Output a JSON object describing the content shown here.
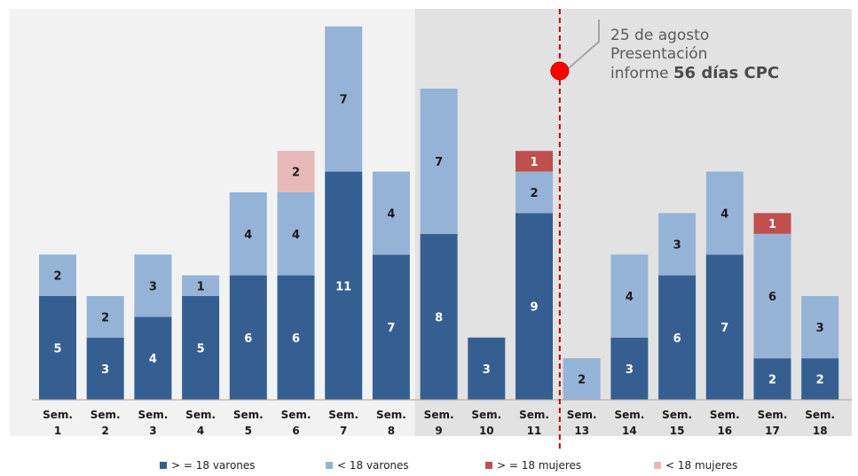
{
  "chart_data": {
    "type": "bar",
    "stacked": true,
    "categories": [
      "Sem. 1",
      "Sem. 2",
      "Sem. 3",
      "Sem. 4",
      "Sem. 5",
      "Sem. 6",
      "Sem. 7",
      "Sem. 8",
      "Sem. 9",
      "Sem. 10",
      "Sem. 11",
      "Sem. 13",
      "Sem. 14",
      "Sem. 15",
      "Sem. 16",
      "Sem. 17",
      "Sem. 18"
    ],
    "category_lines": [
      [
        "Sem.",
        "1"
      ],
      [
        "Sem.",
        "2"
      ],
      [
        "Sem.",
        "3"
      ],
      [
        "Sem.",
        "4"
      ],
      [
        "Sem.",
        "5"
      ],
      [
        "Sem.",
        "6"
      ],
      [
        "Sem.",
        "7"
      ],
      [
        "Sem.",
        "8"
      ],
      [
        "Sem.",
        "9"
      ],
      [
        "Sem.",
        "10"
      ],
      [
        "Sem.",
        "11"
      ],
      [
        "Sem.",
        "13"
      ],
      [
        "Sem.",
        "14"
      ],
      [
        "Sem.",
        "15"
      ],
      [
        "Sem.",
        "16"
      ],
      [
        "Sem.",
        "17"
      ],
      [
        "Sem.",
        "18"
      ]
    ],
    "series": [
      {
        "name": "> = 18 varones",
        "color": "#365f91",
        "values": [
          5,
          3,
          4,
          5,
          6,
          6,
          11,
          7,
          8,
          3,
          9,
          0,
          3,
          6,
          7,
          2,
          2
        ]
      },
      {
        "name": "< 18 varones",
        "color": "#95b3d7",
        "values": [
          2,
          2,
          3,
          1,
          4,
          4,
          7,
          4,
          7,
          0,
          2,
          2,
          4,
          3,
          4,
          6,
          3
        ]
      },
      {
        "name": "> = 18 mujeres",
        "color": "#c0504d",
        "values": [
          0,
          0,
          0,
          0,
          0,
          0,
          0,
          0,
          0,
          0,
          1,
          0,
          0,
          0,
          0,
          1,
          0
        ]
      },
      {
        "name": "< 18 mujeres",
        "color": "#e6b9b8",
        "values": [
          0,
          0,
          0,
          0,
          0,
          2,
          0,
          0,
          0,
          0,
          0,
          0,
          0,
          0,
          0,
          0,
          0
        ]
      }
    ],
    "ylim": [
      0,
      19
    ],
    "shaded_region": {
      "from_category": "Sem. 9",
      "to_category": "Sem. 18"
    },
    "marker": {
      "after_category": "Sem. 11",
      "color": "#ff0000",
      "line_style": "dashed"
    },
    "annotation": {
      "line1": "25 de agosto",
      "line2": "Presentación",
      "line3_prefix": "informe ",
      "line3_bold": "56 días CPC"
    },
    "legend_position": "bottom",
    "grid": false
  }
}
